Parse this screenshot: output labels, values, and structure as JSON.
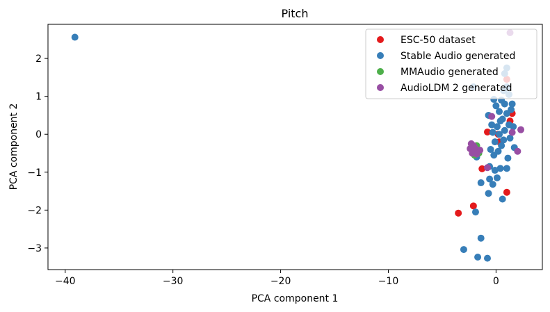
{
  "chart_data": {
    "type": "scatter",
    "title": "Pitch",
    "xlabel": "PCA component 1",
    "ylabel": "PCA component 2",
    "xlim": [
      -41.6,
      4.3
    ],
    "ylim": [
      -3.57,
      2.9
    ],
    "xticks": [
      -40,
      -30,
      -20,
      -10,
      0
    ],
    "xtick_labels": [
      "−40",
      "−30",
      "−20",
      "−10",
      "0"
    ],
    "yticks": [
      -3,
      -2,
      -1,
      0,
      1,
      2
    ],
    "ytick_labels": [
      "−3",
      "−2",
      "−1",
      "0",
      "1",
      "2"
    ],
    "grid": false,
    "legend_position": "top-right",
    "series": [
      {
        "name": "ESC-50 dataset",
        "color": "#e41a1c",
        "points": [
          [
            -3.5,
            -2.08
          ],
          [
            -2.1,
            -1.89
          ],
          [
            -1.3,
            -0.91
          ],
          [
            1.0,
            -1.53
          ],
          [
            1.0,
            1.45
          ],
          [
            1.5,
            0.55
          ],
          [
            1.3,
            0.35
          ],
          [
            -0.8,
            0.06
          ],
          [
            0.3,
            -0.2
          ],
          [
            0.2,
            0.0
          ]
        ]
      },
      {
        "name": "Stable Audio generated",
        "color": "#377eb8",
        "points": [
          [
            -39.1,
            2.56
          ],
          [
            -3.0,
            -3.04
          ],
          [
            -1.7,
            -3.24
          ],
          [
            -0.8,
            -3.27
          ],
          [
            -1.4,
            -2.74
          ],
          [
            -1.9,
            -2.05
          ],
          [
            -0.7,
            -1.56
          ],
          [
            0.6,
            -1.71
          ],
          [
            -1.4,
            -1.28
          ],
          [
            -0.3,
            -1.32
          ],
          [
            0.1,
            -1.15
          ],
          [
            -0.6,
            -1.18
          ],
          [
            0.4,
            -0.9
          ],
          [
            1.0,
            -0.9
          ],
          [
            1.1,
            -0.63
          ],
          [
            -0.2,
            -0.55
          ],
          [
            0.2,
            -0.45
          ],
          [
            -0.5,
            -0.4
          ],
          [
            0.5,
            -0.3
          ],
          [
            -0.1,
            -0.2
          ],
          [
            0.7,
            -0.15
          ],
          [
            0.3,
            0.0
          ],
          [
            -0.3,
            0.05
          ],
          [
            0.8,
            0.1
          ],
          [
            0.1,
            0.2
          ],
          [
            -0.4,
            0.25
          ],
          [
            1.2,
            0.25
          ],
          [
            0.6,
            0.4
          ],
          [
            1.0,
            0.55
          ],
          [
            0.3,
            0.6
          ],
          [
            1.4,
            0.65
          ],
          [
            0.0,
            0.75
          ],
          [
            0.8,
            0.8
          ],
          [
            1.5,
            0.8
          ],
          [
            0.5,
            0.9
          ],
          [
            -0.2,
            0.92
          ],
          [
            1.2,
            1.05
          ],
          [
            0.7,
            1.15
          ],
          [
            1.0,
            1.25
          ],
          [
            -2.1,
            1.25
          ],
          [
            0.8,
            1.6
          ],
          [
            1.0,
            1.75
          ],
          [
            1.6,
            0.2
          ],
          [
            1.7,
            -0.35
          ],
          [
            -0.6,
            -0.85
          ],
          [
            -0.1,
            -0.95
          ],
          [
            -1.8,
            -0.6
          ],
          [
            1.3,
            -0.1
          ],
          [
            0.4,
            0.35
          ],
          [
            -0.7,
            0.5
          ]
        ]
      },
      {
        "name": "MMAudio generated",
        "color": "#4daf4a",
        "points": [
          [
            -2.0,
            -0.55
          ],
          [
            -1.6,
            -0.5
          ],
          [
            -2.2,
            -0.4
          ],
          [
            -1.8,
            -0.3
          ]
        ]
      },
      {
        "name": "AudioLDM 2 generated",
        "color": "#984ea3",
        "points": [
          [
            1.3,
            2.68
          ],
          [
            -2.3,
            -0.25
          ],
          [
            -2.1,
            -0.3
          ],
          [
            -2.4,
            -0.38
          ],
          [
            -1.9,
            -0.4
          ],
          [
            -1.7,
            -0.45
          ],
          [
            -2.2,
            -0.5
          ],
          [
            -1.5,
            -0.42
          ],
          [
            -2.0,
            -0.35
          ],
          [
            -1.8,
            -0.52
          ],
          [
            -0.8,
            -0.88
          ],
          [
            2.0,
            -0.45
          ],
          [
            2.3,
            0.12
          ],
          [
            -0.4,
            0.47
          ],
          [
            1.5,
            0.05
          ]
        ]
      }
    ]
  }
}
